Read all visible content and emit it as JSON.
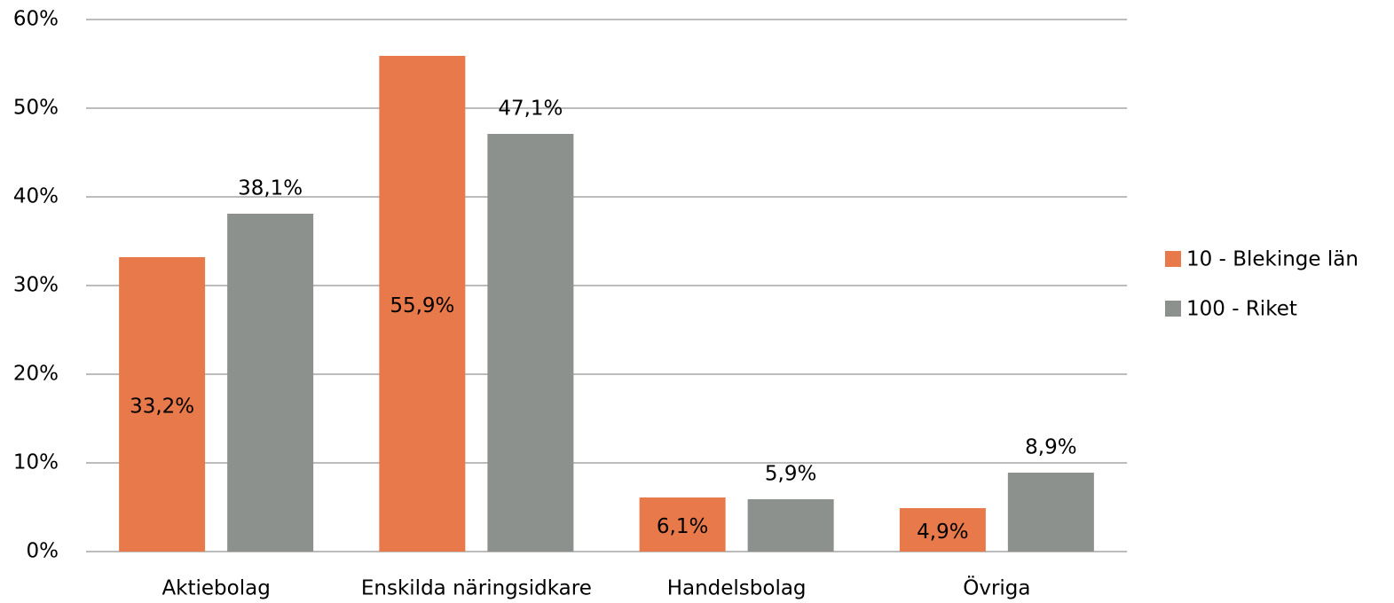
{
  "chart_data": {
    "type": "bar",
    "categories": [
      "Aktiebolag",
      "Enskilda näringsidkare",
      "Handelsbolag",
      "Övriga"
    ],
    "series": [
      {
        "name": "10 - Blekinge län",
        "color": "#e8794b",
        "values": [
          33.2,
          55.9,
          6.1,
          4.9
        ],
        "value_labels": [
          "33,2%",
          "55,9%",
          "6,1%",
          "4,9%"
        ]
      },
      {
        "name": "100 - Riket",
        "color": "#8c918e",
        "values": [
          38.1,
          47.1,
          5.9,
          8.9
        ],
        "value_labels": [
          "38,1%",
          "47,1%",
          "5,9%",
          "8,9%"
        ]
      }
    ],
    "ylim": [
      0,
      60
    ],
    "yticks": [
      {
        "value": 0,
        "label": "0%"
      },
      {
        "value": 10,
        "label": "10%"
      },
      {
        "value": 20,
        "label": "20%"
      },
      {
        "value": 30,
        "label": "30%"
      },
      {
        "value": 40,
        "label": "40%"
      },
      {
        "value": 50,
        "label": "50%"
      },
      {
        "value": 60,
        "label": "60%"
      }
    ],
    "grid": true,
    "legend": "right"
  }
}
